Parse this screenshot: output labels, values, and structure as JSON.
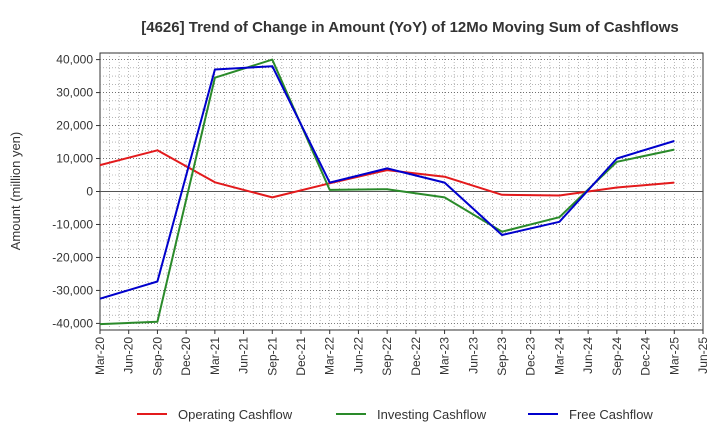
{
  "chart_data": {
    "type": "line",
    "title": "[4626]  Trend of Change in Amount (YoY) of 12Mo Moving Sum of Cashflows",
    "xlabel": "",
    "ylabel": "Amount (million yen)",
    "x_ticks": [
      "Mar-20",
      "Jun-20",
      "Sep-20",
      "Dec-20",
      "Mar-21",
      "Jun-21",
      "Sep-21",
      "Dec-21",
      "Mar-22",
      "Jun-22",
      "Sep-22",
      "Dec-22",
      "Mar-23",
      "Jun-23",
      "Sep-23",
      "Dec-23",
      "Mar-24",
      "Jun-24",
      "Sep-24",
      "Dec-24",
      "Mar-25",
      "Jun-25"
    ],
    "y_ticks": [
      40000,
      30000,
      20000,
      10000,
      0,
      -10000,
      -20000,
      -30000,
      -40000
    ],
    "y_tick_labels": [
      "40,000",
      "30,000",
      "20,000",
      "10,000",
      "0",
      "-10,000",
      "-20,000",
      "-30,000",
      "-40,000"
    ],
    "ylim": [
      -42000,
      42000
    ],
    "grid": true,
    "legend_position": "bottom",
    "series": [
      {
        "name": "Operating Cashflow",
        "color": "#e31a1c",
        "x": [
          "Mar-20",
          "Sep-20",
          "Mar-21",
          "Sep-21",
          "Mar-22",
          "Sep-22",
          "Mar-23",
          "Sep-23",
          "Mar-24",
          "Sep-24",
          "Mar-25"
        ],
        "values": [
          8000,
          12500,
          2800,
          -1800,
          2500,
          6500,
          4500,
          -1000,
          -1200,
          1200,
          2700
        ]
      },
      {
        "name": "Investing Cashflow",
        "color": "#2a8a2a",
        "x": [
          "Mar-20",
          "Sep-20",
          "Mar-21",
          "Sep-21",
          "Mar-22",
          "Sep-22",
          "Mar-23",
          "Sep-23",
          "Mar-24",
          "Sep-24",
          "Mar-25"
        ],
        "values": [
          -40200,
          -39500,
          34500,
          40000,
          500,
          700,
          -1800,
          -12200,
          -7800,
          9000,
          12700
        ]
      },
      {
        "name": "Free Cashflow",
        "color": "#0000cc",
        "x": [
          "Mar-20",
          "Sep-20",
          "Mar-21",
          "Sep-21",
          "Mar-22",
          "Sep-22",
          "Mar-23",
          "Sep-23",
          "Mar-24",
          "Sep-24",
          "Mar-25"
        ],
        "values": [
          -32500,
          -27300,
          37000,
          38000,
          2700,
          7000,
          2700,
          -13200,
          -9200,
          10000,
          15300
        ]
      }
    ]
  }
}
